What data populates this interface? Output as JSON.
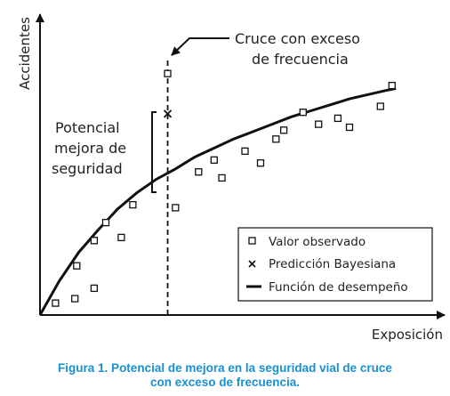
{
  "chart_data": {
    "type": "scatter",
    "xlabel": "Exposición",
    "ylabel": "Accidentes",
    "xlim": [
      0,
      10
    ],
    "ylim": [
      0,
      10
    ],
    "grid": false,
    "legend_position": "bottom-right",
    "series": [
      {
        "name": "Valor observado",
        "marker": "square",
        "x": [
          0.4,
          0.9,
          0.95,
          1.4,
          1.4,
          1.7,
          2.1,
          2.4,
          3.3,
          3.5,
          4.1,
          4.5,
          4.7,
          5.3,
          5.7,
          6.1,
          6.3,
          6.8,
          7.2,
          7.7,
          8.0,
          8.8,
          9.1
        ],
        "y": [
          0.4,
          0.55,
          1.65,
          0.9,
          2.5,
          3.1,
          2.6,
          3.7,
          8.1,
          3.6,
          4.8,
          5.2,
          4.6,
          5.5,
          5.1,
          5.9,
          6.2,
          6.8,
          6.4,
          6.6,
          6.3,
          7.0,
          7.7
        ]
      },
      {
        "name": "Predicción Bayesiana",
        "marker": "x",
        "x": [
          3.3
        ],
        "y": [
          6.75
        ]
      },
      {
        "name": "Función de desempeño",
        "marker": "line",
        "x": [
          0,
          0.5,
          1,
          1.5,
          2,
          2.5,
          3,
          3.5,
          4,
          4.5,
          5,
          5.5,
          6,
          6.5,
          7,
          7.5,
          8,
          8.5,
          9,
          9.2
        ],
        "y": [
          0,
          1.15,
          2.1,
          2.85,
          3.55,
          4.1,
          4.55,
          4.9,
          5.3,
          5.6,
          5.9,
          6.15,
          6.4,
          6.65,
          6.85,
          7.05,
          7.25,
          7.4,
          7.55,
          7.6
        ]
      }
    ],
    "exposure_marker_x": 3.3,
    "annotations": {
      "crossing_label": [
        "Cruce con exceso",
        "de frecuencia"
      ],
      "potential_label": [
        "Potencial",
        "mejora de",
        "seguridad"
      ]
    },
    "caption": [
      "Figura 1. Potencial de mejora en la seguridad vial de cruce",
      "con exceso de frecuencia."
    ],
    "colors": {
      "ink": "#111111",
      "caption": "#1a8fd0"
    }
  }
}
